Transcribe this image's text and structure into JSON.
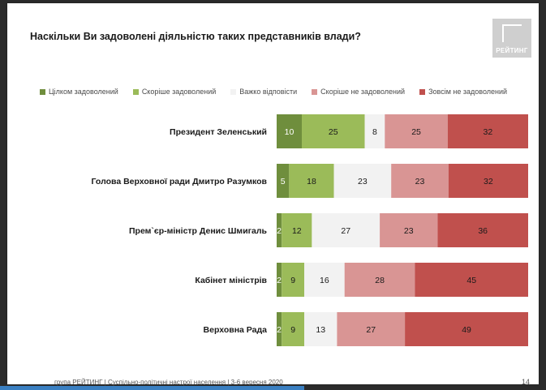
{
  "slide": {
    "title": "Наскільки Ви задоволені діяльністю таких представників влади?",
    "logo_text": "РЕЙТИНГ",
    "footer": "група РЕЙТИНГ | Суспільно-політичні настрої населення | 3-6 вересня 2020",
    "page_number": "14"
  },
  "chart_data": {
    "type": "bar",
    "orientation": "horizontal",
    "stacked": true,
    "normalized": "percent",
    "title": "Наскільки Ви задоволені діяльністю таких представників влади?",
    "categories": [
      "Президент Зеленський",
      "Голова Верховної ради Дмитро Разумков",
      "Прем`єр-міністр Денис Шмигаль",
      "Кабінет міністрів",
      "Верховна Рада"
    ],
    "series": [
      {
        "name": "Цілком задоволений",
        "color": "#6f8e3d",
        "values": [
          10,
          5,
          2,
          2,
          2
        ]
      },
      {
        "name": "Скоріше задоволений",
        "color": "#9bbb59",
        "values": [
          25,
          18,
          12,
          9,
          9
        ]
      },
      {
        "name": "Важко відповісти",
        "color": "#f2f2f2",
        "values": [
          8,
          23,
          27,
          16,
          13
        ]
      },
      {
        "name": "Скоріше не задоволений",
        "color": "#d99594",
        "values": [
          25,
          23,
          23,
          28,
          27
        ]
      },
      {
        "name": "Зовсім не задоволений",
        "color": "#c0504d",
        "values": [
          32,
          32,
          36,
          45,
          49
        ]
      }
    ],
    "legend_position": "top",
    "grid": false
  }
}
